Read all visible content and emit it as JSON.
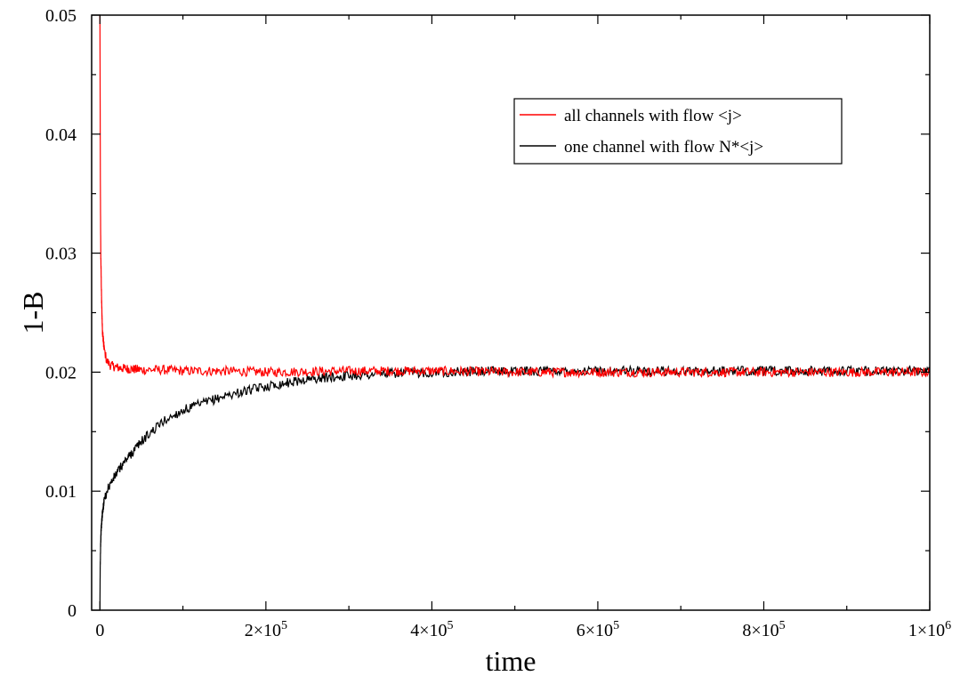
{
  "chart_data": {
    "type": "line",
    "xlabel": "time",
    "ylabel": "1-B",
    "xlim": [
      -10000,
      1000000
    ],
    "ylim": [
      0,
      0.05
    ],
    "x_ticks": [
      {
        "value": 0,
        "label": "0",
        "exp": ""
      },
      {
        "value": 200000,
        "label": "2×10",
        "exp": "5"
      },
      {
        "value": 400000,
        "label": "4×10",
        "exp": "5"
      },
      {
        "value": 600000,
        "label": "6×10",
        "exp": "5"
      },
      {
        "value": 800000,
        "label": "8×10",
        "exp": "5"
      },
      {
        "value": 1000000,
        "label": "1×10",
        "exp": "6"
      }
    ],
    "y_ticks": [
      {
        "value": 0,
        "label": "0"
      },
      {
        "value": 0.01,
        "label": "0.01"
      },
      {
        "value": 0.02,
        "label": "0.02"
      },
      {
        "value": 0.03,
        "label": "0.03"
      },
      {
        "value": 0.04,
        "label": "0.04"
      },
      {
        "value": 0.05,
        "label": "0.05"
      }
    ],
    "grid": false,
    "legend_position": "top-right",
    "series": [
      {
        "name": "all channels with flow <j>",
        "color": "#ff0000",
        "x": [
          0,
          500,
          1000,
          2000,
          3000,
          5000,
          8000,
          12000,
          20000,
          30000,
          50000,
          75000,
          100000,
          150000,
          200000,
          300000,
          400000,
          500000,
          600000,
          700000,
          800000,
          900000,
          1000000
        ],
        "y": [
          0.05,
          0.036,
          0.03,
          0.026,
          0.0235,
          0.022,
          0.021,
          0.0206,
          0.0204,
          0.0203,
          0.0202,
          0.0202,
          0.0201,
          0.0201,
          0.02,
          0.0201,
          0.0201,
          0.02,
          0.02,
          0.02,
          0.02,
          0.02,
          0.02
        ],
        "noise": 0.0004
      },
      {
        "name": "one channel with flow N*<j>",
        "color": "#000000",
        "x": [
          0,
          300,
          800,
          1500,
          3000,
          6000,
          10000,
          20000,
          30000,
          50000,
          75000,
          100000,
          150000,
          200000,
          250000,
          300000,
          350000,
          400000,
          500000,
          600000,
          700000,
          800000,
          900000,
          1000000
        ],
        "y": [
          0,
          0.0035,
          0.0055,
          0.0068,
          0.0082,
          0.0095,
          0.0103,
          0.0115,
          0.0125,
          0.0142,
          0.0158,
          0.0168,
          0.018,
          0.0188,
          0.0194,
          0.0197,
          0.0199,
          0.02,
          0.0201,
          0.0201,
          0.0201,
          0.0201,
          0.0201,
          0.0201
        ],
        "noise": 0.0004
      }
    ]
  }
}
